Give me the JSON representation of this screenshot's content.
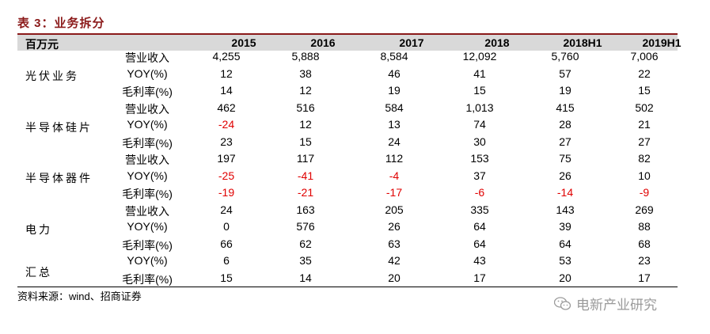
{
  "title": "表 3：业务拆分",
  "header": {
    "unit": "百万元",
    "years": [
      "2015",
      "2016",
      "2017",
      "2018",
      "2018H1",
      "2019H1"
    ]
  },
  "groups": [
    {
      "name": "光伏业务",
      "rows": [
        {
          "metric": "营业收入",
          "values": [
            "4,255",
            "5,888",
            "8,584",
            "12,092",
            "5,760",
            "7,006"
          ]
        },
        {
          "metric": "YOY(%)",
          "values": [
            "12",
            "38",
            "46",
            "41",
            "57",
            "22"
          ]
        },
        {
          "metric": "毛利率(%)",
          "values": [
            "14",
            "12",
            "19",
            "15",
            "19",
            "15"
          ]
        }
      ]
    },
    {
      "name": "半导体硅片",
      "rows": [
        {
          "metric": "营业收入",
          "values": [
            "462",
            "516",
            "584",
            "1,013",
            "415",
            "502"
          ]
        },
        {
          "metric": "YOY(%)",
          "values": [
            "-24",
            "12",
            "13",
            "74",
            "28",
            "21"
          ]
        },
        {
          "metric": "毛利率(%)",
          "values": [
            "23",
            "15",
            "24",
            "30",
            "27",
            "27"
          ]
        }
      ]
    },
    {
      "name": "半导体器件",
      "rows": [
        {
          "metric": "营业收入",
          "values": [
            "197",
            "117",
            "112",
            "153",
            "75",
            "82"
          ]
        },
        {
          "metric": "YOY(%)",
          "values": [
            "-25",
            "-41",
            "-4",
            "37",
            "26",
            "10"
          ]
        },
        {
          "metric": "毛利率(%)",
          "values": [
            "-19",
            "-21",
            "-17",
            "-6",
            "-14",
            "-9"
          ]
        }
      ]
    },
    {
      "name": "电力",
      "rows": [
        {
          "metric": "营业收入",
          "values": [
            "24",
            "163",
            "205",
            "335",
            "143",
            "269"
          ]
        },
        {
          "metric": "YOY(%)",
          "values": [
            "0",
            "576",
            "26",
            "64",
            "39",
            "88"
          ]
        },
        {
          "metric": "毛利率(%)",
          "values": [
            "66",
            "62",
            "63",
            "64",
            "64",
            "68"
          ]
        }
      ]
    },
    {
      "name": "汇总",
      "rows": [
        {
          "metric": "YOY(%)",
          "values": [
            "6",
            "35",
            "42",
            "43",
            "53",
            "23"
          ]
        },
        {
          "metric": "毛利率(%)",
          "values": [
            "15",
            "14",
            "20",
            "17",
            "20",
            "17"
          ]
        }
      ]
    }
  ],
  "source": "资料来源：wind、招商证券",
  "watermark": {
    "text": "电新产业研究",
    "icon": "wechat-icon"
  },
  "colors": {
    "title": "#8B1A1A",
    "negative": "#e00000",
    "header_bg": "#d9d9d9"
  }
}
